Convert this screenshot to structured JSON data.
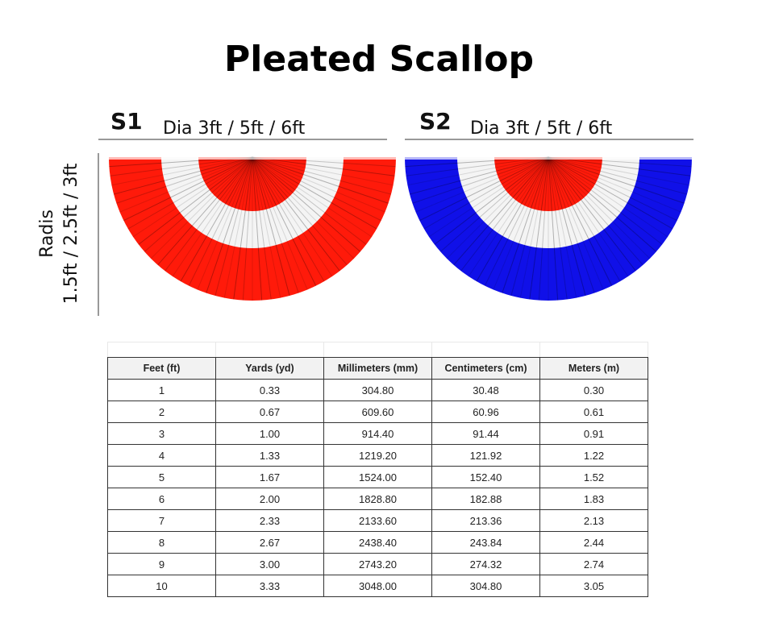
{
  "title": "Pleated Scallop",
  "sections": [
    {
      "label": "S1",
      "size": "Dia 3ft /  5ft / 6ft"
    },
    {
      "label": "S2",
      "size": "Dia 3ft /  5ft / 6ft"
    }
  ],
  "radius_label": {
    "line1": "Radis",
    "line2": "1.5ft / 2.5ft / 3ft"
  },
  "table": {
    "header": [
      "Feet (ft)",
      "Yards (yd)",
      "Millimeters (mm)",
      "Centimeters (cm)",
      "Meters (m)"
    ],
    "rows": [
      [
        "1",
        "0.33",
        "304.80",
        "30.48",
        "0.30"
      ],
      [
        "2",
        "0.67",
        "609.60",
        "60.96",
        "0.61"
      ],
      [
        "3",
        "1.00",
        "914.40",
        "91.44",
        "0.91"
      ],
      [
        "4",
        "1.33",
        "1219.20",
        "121.92",
        "1.22"
      ],
      [
        "5",
        "1.67",
        "1524.00",
        "152.40",
        "1.52"
      ],
      [
        "6",
        "2.00",
        "1828.80",
        "182.88",
        "1.83"
      ],
      [
        "7",
        "2.33",
        "2133.60",
        "213.36",
        "2.13"
      ],
      [
        "8",
        "2.67",
        "2438.40",
        "243.84",
        "2.44"
      ],
      [
        "9",
        "3.00",
        "2743.20",
        "274.32",
        "2.74"
      ],
      [
        "10",
        "3.33",
        "3048.00",
        "304.80",
        "3.05"
      ]
    ]
  }
}
